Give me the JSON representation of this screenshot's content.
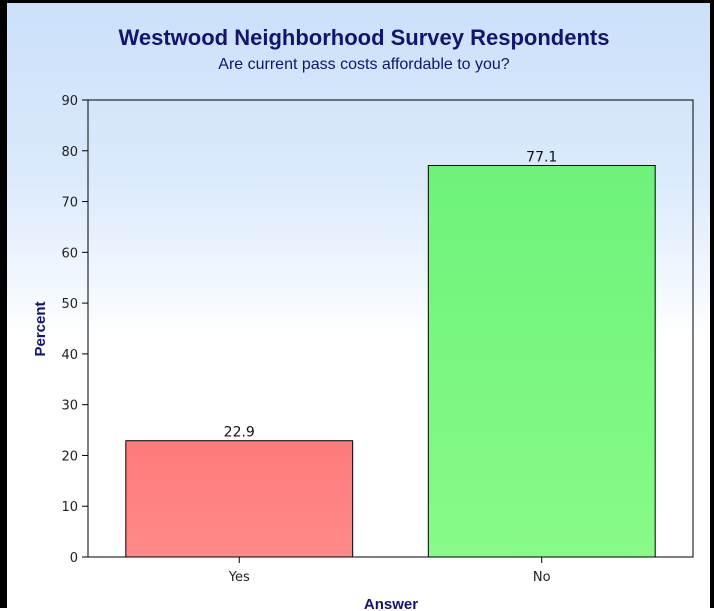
{
  "chart_data": {
    "type": "bar",
    "title": "Westwood Neighborhood Survey Respondents",
    "subtitle": "Are current pass costs affordable to you?",
    "xlabel": "Answer",
    "ylabel": "Percent",
    "categories": [
      "Yes",
      "No"
    ],
    "values": [
      22.9,
      77.1
    ],
    "data_labels": [
      "22.9",
      "77.1"
    ],
    "ylim": [
      0,
      90
    ],
    "yticks": [
      0,
      10,
      20,
      30,
      40,
      50,
      60,
      70,
      80,
      90
    ],
    "grid": false,
    "legend": "none",
    "bar_colors": [
      "#ff7f7f",
      "#7ff47f"
    ],
    "title_color": "#14146e"
  }
}
